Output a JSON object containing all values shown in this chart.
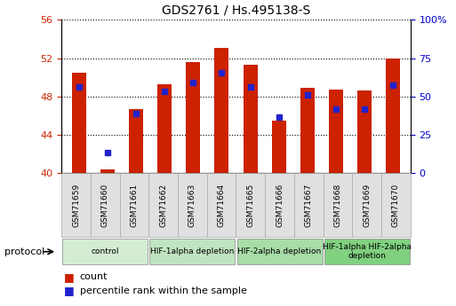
{
  "title": "GDS2761 / Hs.495138-S",
  "samples": [
    "GSM71659",
    "GSM71660",
    "GSM71661",
    "GSM71662",
    "GSM71663",
    "GSM71664",
    "GSM71665",
    "GSM71666",
    "GSM71667",
    "GSM71668",
    "GSM71669",
    "GSM71670"
  ],
  "red_values": [
    50.5,
    40.4,
    46.7,
    49.3,
    51.6,
    53.1,
    51.3,
    45.5,
    48.9,
    48.7,
    48.6,
    52.0
  ],
  "blue_values": [
    49.0,
    42.1,
    46.2,
    48.5,
    49.5,
    50.5,
    49.0,
    45.8,
    48.2,
    46.7,
    46.7,
    49.2
  ],
  "ylim_left": [
    40,
    56
  ],
  "yticks_left": [
    40,
    44,
    48,
    52,
    56
  ],
  "yticks_right_labels": [
    "0",
    "25",
    "50",
    "75",
    "100%"
  ],
  "yticks_right_vals": [
    40,
    44,
    48,
    52,
    56
  ],
  "bar_color": "#cc2200",
  "dot_color": "#2222cc",
  "groups": [
    {
      "label": "control",
      "start": 0,
      "end": 2,
      "color": "#d4ecd4"
    },
    {
      "label": "HIF-1alpha depletion",
      "start": 3,
      "end": 5,
      "color": "#c0e4c0"
    },
    {
      "label": "HIF-2alpha depletion",
      "start": 6,
      "end": 8,
      "color": "#a8dca8"
    },
    {
      "label": "HIF-1alpha HIF-2alpha\ndepletion",
      "start": 9,
      "end": 11,
      "color": "#80d080"
    }
  ],
  "legend_count_label": "count",
  "legend_pct_label": "percentile rank within the sample",
  "protocol_label": "protocol"
}
